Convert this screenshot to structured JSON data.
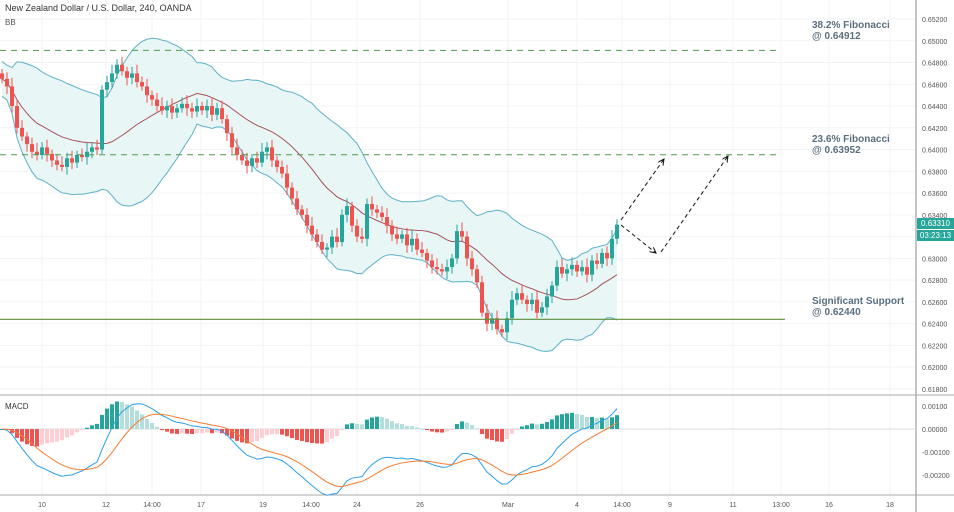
{
  "header": {
    "title": "New Zealand Dollar / U.S. Dollar, 240, OANDA",
    "indicator_main": "BB",
    "indicator_sub": "MACD"
  },
  "price_tag": {
    "price": "0.63310",
    "countdown": "03:23:13",
    "color": "#26a69a"
  },
  "annotations": {
    "fib382": {
      "line1": "38.2% Fibonacci",
      "line2": "@ 0.64912",
      "value": 0.64912
    },
    "fib236": {
      "line1": "23.6% Fibonacci",
      "line2": "@ 0.63952",
      "value": 0.63952
    },
    "support": {
      "line1": "Significant Support",
      "line2": "@ 0.62440",
      "value": 0.6244
    }
  },
  "chart_data": {
    "type": "candlestick",
    "ylim": [
      0.617,
      0.653
    ],
    "y_ticks": [
      "0.65200",
      "0.65000",
      "0.64800",
      "0.64600",
      "0.64400",
      "0.64200",
      "0.64000",
      "0.63800",
      "0.63600",
      "0.63400",
      "0.63000",
      "0.62800",
      "0.62600",
      "0.62400",
      "0.62200",
      "0.62000",
      "0.61800"
    ],
    "macd_ticks": [
      "0.00100",
      "0.00000",
      "-0.00100",
      "-0.00200"
    ],
    "x_ticks": [
      "10",
      "12",
      "14:00",
      "17",
      "19",
      "14:00",
      "24",
      "26",
      "Mar",
      "4",
      "14:00",
      "9",
      "11",
      "13:00",
      "16",
      "18"
    ],
    "colors": {
      "up": "#26a69a",
      "down": "#ef5350",
      "bands": "#5fb0c6",
      "basis": "#a5525a",
      "fib": "#4f9a4f",
      "support": "#5b8f3a",
      "macd": "#2d9ee8",
      "signal": "#f57c32"
    },
    "closes": [
      0.6465,
      0.6458,
      0.644,
      0.642,
      0.6412,
      0.6405,
      0.6398,
      0.6395,
      0.6402,
      0.6396,
      0.639,
      0.6386,
      0.6384,
      0.6392,
      0.6388,
      0.6395,
      0.6393,
      0.6398,
      0.6402,
      0.64,
      0.6455,
      0.6462,
      0.647,
      0.6478,
      0.6472,
      0.6466,
      0.647,
      0.6462,
      0.6458,
      0.645,
      0.6446,
      0.644,
      0.6436,
      0.644,
      0.6434,
      0.6438,
      0.6442,
      0.6438,
      0.6435,
      0.644,
      0.6436,
      0.644,
      0.6432,
      0.6438,
      0.6428,
      0.6415,
      0.6402,
      0.6395,
      0.639,
      0.6385,
      0.6392,
      0.6388,
      0.6398,
      0.6402,
      0.639,
      0.6384,
      0.6378,
      0.6365,
      0.6355,
      0.6345,
      0.634,
      0.633,
      0.6322,
      0.6315,
      0.6308,
      0.631,
      0.632,
      0.6315,
      0.634,
      0.6348,
      0.633,
      0.632,
      0.6318,
      0.635,
      0.6345,
      0.6342,
      0.6338,
      0.633,
      0.6322,
      0.6318,
      0.6322,
      0.6312,
      0.6318,
      0.6308,
      0.6305,
      0.6298,
      0.6292,
      0.629,
      0.6288,
      0.6292,
      0.63,
      0.6325,
      0.632,
      0.63,
      0.629,
      0.6278,
      0.625,
      0.624,
      0.6245,
      0.6235,
      0.6232,
      0.6245,
      0.6262,
      0.6268,
      0.6262,
      0.6258,
      0.6262,
      0.625,
      0.6255,
      0.6265,
      0.6275,
      0.6292,
      0.6286,
      0.629,
      0.6294,
      0.6288,
      0.6292,
      0.6285,
      0.6298,
      0.6295,
      0.6305,
      0.63,
      0.6318,
      0.6331
    ]
  }
}
